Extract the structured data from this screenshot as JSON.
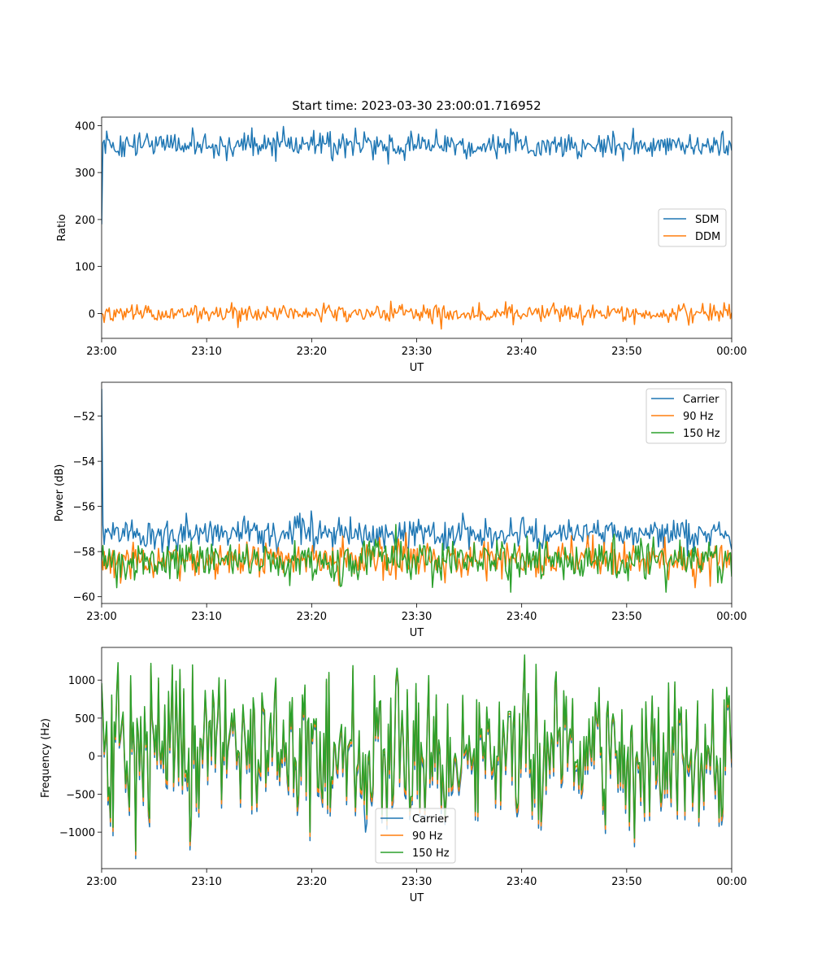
{
  "figure": {
    "title": "Start time: 2023-03-30 23:00:01.716952"
  },
  "chart_data": [
    {
      "type": "line",
      "xlabel": "UT",
      "ylabel": "Ratio",
      "x_range_minutes": [
        0,
        60
      ],
      "ylim": [
        -53,
        418
      ],
      "x_tick_labels": [
        "23:00",
        "23:10",
        "23:20",
        "23:30",
        "23:40",
        "23:50",
        "00:00"
      ],
      "yticks": [
        0,
        100,
        200,
        300,
        400
      ],
      "legend": "center-right",
      "series": [
        {
          "name": "SDM",
          "color": "#1f77b4",
          "initial": 190,
          "mean": 358,
          "amplitude": 13,
          "spikes": [
            [
              8.6,
              395
            ],
            [
              14.3,
              395
            ],
            [
              17.3,
              398
            ],
            [
              22.0,
              325
            ],
            [
              27.3,
              318
            ],
            [
              31.9,
              392
            ],
            [
              39.0,
              393
            ],
            [
              59.2,
              388
            ]
          ]
        },
        {
          "name": "DDM",
          "color": "#ff7f0e",
          "initial": 0,
          "mean": 0,
          "amplitude": 9,
          "spikes": [
            [
              12.4,
              23
            ],
            [
              13.0,
              -30
            ],
            [
              27.5,
              26
            ],
            [
              32.4,
              -33
            ],
            [
              36.0,
              23
            ],
            [
              38.5,
              25
            ],
            [
              55.9,
              -25
            ]
          ]
        }
      ]
    },
    {
      "type": "line",
      "xlabel": "UT",
      "ylabel": "Power (dB)",
      "x_range_minutes": [
        0,
        60
      ],
      "ylim": [
        -60.3,
        -50.5
      ],
      "x_tick_labels": [
        "23:00",
        "23:10",
        "23:20",
        "23:30",
        "23:40",
        "23:50",
        "00:00"
      ],
      "yticks": [
        -60,
        -58,
        -56,
        -54,
        -52
      ],
      "legend": "top-right",
      "series": [
        {
          "name": "Carrier",
          "color": "#1f77b4",
          "initial": -50.8,
          "mean": -57.2,
          "amplitude": 0.35,
          "spikes": [
            [
              8.1,
              -56.3
            ],
            [
              18.9,
              -56.3
            ],
            [
              20.0,
              -56.2
            ],
            [
              34.4,
              -56.3
            ]
          ]
        },
        {
          "name": "90 Hz",
          "color": "#ff7f0e",
          "initial": -58.2,
          "mean": -58.3,
          "amplitude": 0.4,
          "spikes": [
            [
              1.8,
              -59.4
            ],
            [
              22.6,
              -59.5
            ],
            [
              36.7,
              -59.3
            ],
            [
              56.5,
              -59.6
            ]
          ]
        },
        {
          "name": "150 Hz",
          "color": "#2ca02c",
          "initial": -58.4,
          "mean": -58.4,
          "amplitude": 0.45,
          "spikes": [
            [
              1.5,
              -59.6
            ],
            [
              28.0,
              -56.8
            ],
            [
              39.0,
              -59.8
            ],
            [
              53.7,
              -59.8
            ]
          ]
        }
      ]
    },
    {
      "type": "line",
      "xlabel": "UT",
      "ylabel": "Frequency (Hz)",
      "x_range_minutes": [
        0,
        60
      ],
      "ylim": [
        -1480,
        1430
      ],
      "x_tick_labels": [
        "23:00",
        "23:10",
        "23:20",
        "23:30",
        "23:40",
        "23:50",
        "00:00"
      ],
      "yticks": [
        -1000,
        -500,
        0,
        500,
        1000
      ],
      "legend": "lower-center",
      "series": [
        {
          "name": "Carrier",
          "color": "#1f77b4",
          "offset": -70,
          "spikes": [
            [
              3.3,
              -1350
            ],
            [
              25.1,
              -1000
            ]
          ]
        },
        {
          "name": "90 Hz",
          "color": "#ff7f0e",
          "offset": -35,
          "spikes": [
            [
              3.3,
              -1300
            ]
          ]
        },
        {
          "name": "150 Hz",
          "color": "#2ca02c",
          "offset": 0,
          "initial": 960,
          "mean": 80,
          "amplitude": 420,
          "spikes": [
            [
              1.6,
              1230
            ],
            [
              3.3,
              -1250
            ],
            [
              4.7,
              1220
            ],
            [
              6.7,
              1200
            ],
            [
              8.7,
              1200
            ],
            [
              19.8,
              -1000
            ],
            [
              21.7,
              1100
            ],
            [
              26.0,
              1060
            ],
            [
              31.1,
              1060
            ],
            [
              40.3,
              1330
            ],
            [
              50.7,
              -1080
            ]
          ]
        }
      ]
    }
  ]
}
